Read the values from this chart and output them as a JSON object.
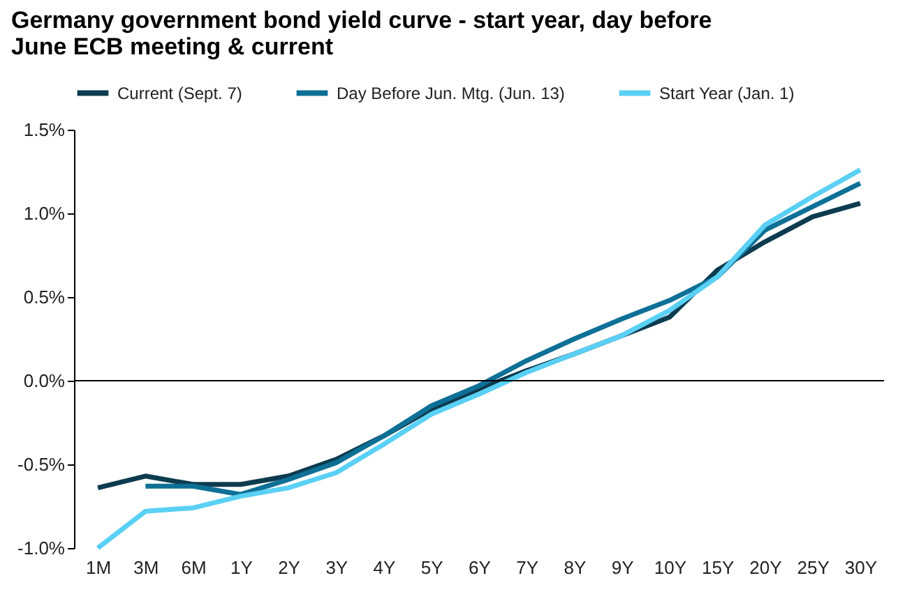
{
  "chart_data": {
    "type": "line",
    "title": "Germany government bond yield curve - start year, day before June ECB meeting & current",
    "categories": [
      "1M",
      "3M",
      "6M",
      "1Y",
      "2Y",
      "3Y",
      "4Y",
      "5Y",
      "6Y",
      "7Y",
      "8Y",
      "9Y",
      "10Y",
      "15Y",
      "20Y",
      "25Y",
      "30Y"
    ],
    "series": [
      {
        "name": "Current (Sept. 7)",
        "color": "#0d3b4f",
        "values": [
          -0.64,
          -0.57,
          -0.62,
          -0.62,
          -0.57,
          -0.47,
          -0.33,
          -0.17,
          -0.05,
          0.06,
          0.16,
          0.27,
          0.38,
          0.66,
          0.83,
          0.98,
          1.06
        ]
      },
      {
        "name": "Day Before Jun. Mtg. (Jun. 13)",
        "color": "#0e7096",
        "values": [
          null,
          -0.63,
          -0.63,
          -0.68,
          -0.59,
          -0.49,
          -0.33,
          -0.15,
          -0.03,
          0.12,
          0.25,
          0.37,
          0.48,
          0.62,
          0.9,
          1.04,
          1.18
        ]
      },
      {
        "name": "Start Year (Jan. 1)",
        "color": "#5bd0f5",
        "values": [
          -1.0,
          -0.78,
          -0.76,
          -0.69,
          -0.64,
          -0.55,
          -0.38,
          -0.2,
          -0.08,
          0.05,
          0.16,
          0.27,
          0.42,
          0.62,
          0.93,
          1.1,
          1.26
        ]
      }
    ],
    "ylim": [
      -1.0,
      1.5
    ],
    "yticks": [
      {
        "value": -1.0,
        "label": "-1.0%"
      },
      {
        "value": -0.5,
        "label": "-0.5%"
      },
      {
        "value": 0,
        "label": "0.0%"
      },
      {
        "value": 0.5,
        "label": "0.5%"
      },
      {
        "value": 1.0,
        "label": "1.0%"
      },
      {
        "value": 1.5,
        "label": "1.5%"
      }
    ],
    "ref_lines": [
      {
        "axis": "y",
        "value": 0,
        "color": "#000000"
      }
    ],
    "grid": false,
    "legend": "top",
    "marker": "none",
    "line_style": "solid"
  }
}
